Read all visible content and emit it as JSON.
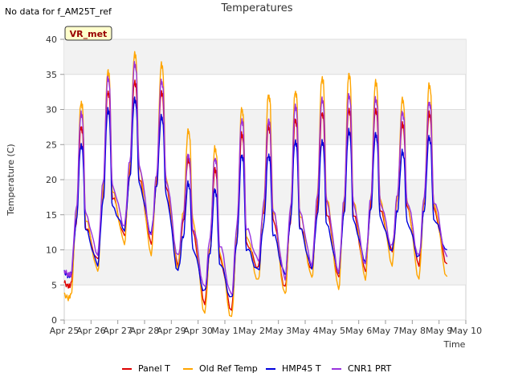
{
  "header": {
    "nodata": "No data for f_AM25T_ref",
    "title": "Temperatures"
  },
  "chart_data": {
    "type": "line",
    "title": "Temperatures",
    "xlabel": "Time",
    "ylabel": "Temperature (C)",
    "annotation": "VR_met",
    "xlim": [
      "2024-04-25",
      "2024-05-10"
    ],
    "ylim": [
      0,
      40
    ],
    "x_ticks": [
      "Apr 25",
      "Apr 26",
      "Apr 27",
      "Apr 28",
      "Apr 29",
      "Apr 30",
      "May 1",
      "May 2",
      "May 3",
      "May 4",
      "May 5",
      "May 6",
      "May 7",
      "May 8",
      "May 9",
      "May 10"
    ],
    "y_ticks": [
      0,
      5,
      10,
      15,
      20,
      25,
      30,
      35,
      40
    ],
    "grid": true,
    "legend_position": "bottom",
    "colors": {
      "Panel T": "#dd0000",
      "Old Ref Temp": "#ffa500",
      "HMP45 T": "#0000dd",
      "CNR1 PRT": "#9933dd"
    },
    "x": [
      "2024-04-25",
      "2024-04-26",
      "2024-04-27",
      "2024-04-28",
      "2024-04-29",
      "2024-04-30",
      "2024-05-01",
      "2024-05-02",
      "2024-05-03",
      "2024-05-04",
      "2024-05-05",
      "2024-05-06",
      "2024-05-07",
      "2024-05-08",
      "2024-05-09"
    ],
    "series_note_min_max": "each series alternates daily minimum and maximum",
    "series": [
      {
        "name": "Panel T",
        "start": 5.3,
        "daily": [
          [
            5.0,
            27.5
          ],
          [
            8.5,
            32.5
          ],
          [
            12.0,
            34.0
          ],
          [
            11.0,
            32.5
          ],
          [
            8.0,
            23.0
          ],
          [
            2.5,
            21.5
          ],
          [
            1.5,
            26.5
          ],
          [
            7.5,
            27.5
          ],
          [
            4.5,
            28.5
          ],
          [
            7.0,
            29.5
          ],
          [
            6.0,
            30.0
          ],
          [
            7.0,
            30.0
          ],
          [
            10.0,
            28.0
          ],
          [
            8.0,
            29.5
          ]
        ],
        "end": 8.0
      },
      {
        "name": "Old Ref Temp",
        "start": 3.6,
        "daily": [
          [
            3.5,
            31.0
          ],
          [
            7.0,
            35.5
          ],
          [
            11.0,
            38.0
          ],
          [
            9.5,
            36.5
          ],
          [
            7.5,
            27.0
          ],
          [
            1.0,
            24.5
          ],
          [
            0.3,
            30.0
          ],
          [
            5.5,
            32.0
          ],
          [
            3.5,
            32.5
          ],
          [
            6.0,
            34.5
          ],
          [
            4.5,
            35.0
          ],
          [
            6.0,
            34.0
          ],
          [
            8.0,
            31.5
          ],
          [
            6.0,
            33.5
          ]
        ],
        "end": 6.2
      },
      {
        "name": "HMP45 T",
        "start": 6.8,
        "daily": [
          [
            6.5,
            25.0
          ],
          [
            8.0,
            30.0
          ],
          [
            13.0,
            31.5
          ],
          [
            12.5,
            29.0
          ],
          [
            7.0,
            19.5
          ],
          [
            4.0,
            18.5
          ],
          [
            3.0,
            23.5
          ],
          [
            7.0,
            23.5
          ],
          [
            6.5,
            25.5
          ],
          [
            7.5,
            25.5
          ],
          [
            7.0,
            27.0
          ],
          [
            8.5,
            26.5
          ],
          [
            10.0,
            24.0
          ],
          [
            9.0,
            26.0
          ]
        ],
        "end": 10.0
      },
      {
        "name": "CNR1 PRT",
        "start": 7.0,
        "daily": [
          [
            6.5,
            29.5
          ],
          [
            9.5,
            34.5
          ],
          [
            13.5,
            36.5
          ],
          [
            12.0,
            34.0
          ],
          [
            9.0,
            23.5
          ],
          [
            4.5,
            23.0
          ],
          [
            3.5,
            28.5
          ],
          [
            8.5,
            28.5
          ],
          [
            6.0,
            30.5
          ],
          [
            8.0,
            31.5
          ],
          [
            7.0,
            32.0
          ],
          [
            8.0,
            31.5
          ],
          [
            10.5,
            29.5
          ],
          [
            9.0,
            31.0
          ]
        ],
        "end": 9.0
      }
    ]
  }
}
